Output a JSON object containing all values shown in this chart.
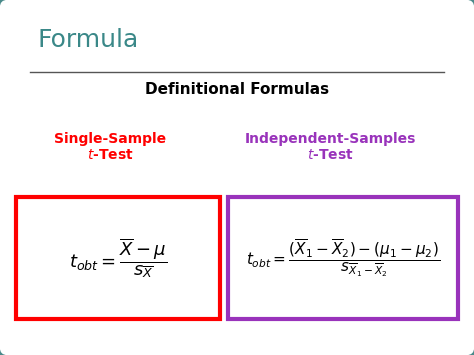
{
  "background_color": "#ffffff",
  "outer_border_color": "#4a8a8a",
  "title_text": "Formula",
  "title_color": "#3a8888",
  "subtitle_text": "Definitional Formulas",
  "subtitle_color": "#000000",
  "label1_line1": "Single-Sample",
  "label1_line2": "$\\mathit{t}$-Test",
  "label1_color": "#ff0000",
  "label2_line1": "Independent-Samples",
  "label2_line2": "$\\mathit{t}$-Test",
  "label2_color": "#9933bb",
  "box1_color": "#ff0000",
  "box2_color": "#9933bb",
  "box1_facecolor": "#ffffff",
  "box2_facecolor": "#ffffff",
  "formula_color": "#000000",
  "title_fontsize": 18,
  "subtitle_fontsize": 11,
  "label_fontsize": 10,
  "formula1_fontsize": 13,
  "formula2_fontsize": 11
}
